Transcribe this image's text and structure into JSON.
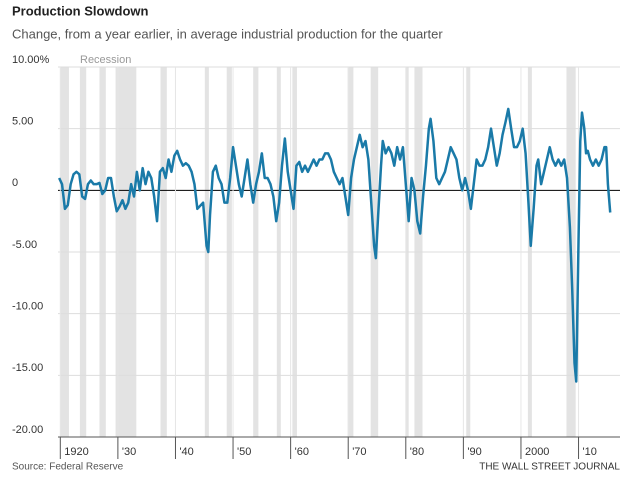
{
  "chart_data": {
    "type": "line",
    "title": "Production Slowdown",
    "subtitle": "Change, from a year earlier, in average industrial production for the quarter",
    "source": "Source: Federal Reserve",
    "credit": "THE WALL STREET JOURNAL",
    "recession_label": "Recession",
    "recession_color": "#e3e3e3",
    "grid": true,
    "xlim": [
      1919.6,
      2017.2
    ],
    "ylim": [
      -20,
      10
    ],
    "yticks": [
      {
        "value": -20,
        "label": "-20.00"
      },
      {
        "value": -15,
        "label": "-15.00"
      },
      {
        "value": -10,
        "label": "-10.00"
      },
      {
        "value": -5,
        "label": "-5.00"
      },
      0,
      {
        "value": 5,
        "label": "5.00"
      },
      {
        "value": 10,
        "label": "10.00%"
      }
    ],
    "xticks": [
      1920,
      {
        "value": 1930,
        "label": "'30"
      },
      {
        "value": 1940,
        "label": "'40"
      },
      {
        "value": 1950,
        "label": "'50"
      },
      {
        "value": 1960,
        "label": "'60"
      },
      {
        "value": 1970,
        "label": "'70"
      },
      {
        "value": 1980,
        "label": "'80"
      },
      {
        "value": 1990,
        "label": "'90"
      },
      2000,
      {
        "value": 2010,
        "label": "'10"
      }
    ],
    "recessions": [
      [
        1920.0,
        1921.5
      ],
      [
        1923.4,
        1924.5
      ],
      [
        1926.8,
        1927.9
      ],
      [
        1929.6,
        1933.2
      ],
      [
        1937.4,
        1938.5
      ],
      [
        1945.1,
        1945.8
      ],
      [
        1948.9,
        1949.8
      ],
      [
        1953.5,
        1954.4
      ],
      [
        1957.6,
        1958.3
      ],
      [
        1960.3,
        1961.1
      ],
      [
        1969.9,
        1970.9
      ],
      [
        1973.9,
        1975.2
      ],
      [
        1980.0,
        1980.5
      ],
      [
        1981.5,
        1982.9
      ],
      [
        1990.5,
        1991.2
      ],
      [
        2001.2,
        2001.9
      ],
      [
        2007.9,
        2009.5
      ]
    ],
    "x": [
      1919.8,
      1920.3,
      1920.8,
      1921.3,
      1921.8,
      1922.3,
      1922.8,
      1923.3,
      1923.8,
      1924.3,
      1924.8,
      1925.3,
      1925.8,
      1926.3,
      1926.8,
      1927.3,
      1927.8,
      1928.3,
      1928.8,
      1929.3,
      1929.8,
      1930.3,
      1930.8,
      1931.3,
      1931.8,
      1932.3,
      1932.8,
      1933.3,
      1933.8,
      1934.3,
      1934.8,
      1935.3,
      1935.8,
      1936.3,
      1936.8,
      1937.3,
      1937.8,
      1938.3,
      1938.8,
      1939.3,
      1939.8,
      1940.3,
      1940.8,
      1941.3,
      1941.8,
      1942.3,
      1942.8,
      1943.3,
      1943.8,
      1944.8,
      1945.4,
      1945.7,
      1946.0,
      1946.5,
      1947.0,
      1947.5,
      1948.0,
      1948.5,
      1949.0,
      1949.5,
      1950.0,
      1950.5,
      1951.0,
      1951.5,
      1952.0,
      1952.5,
      1953.0,
      1953.5,
      1954.0,
      1954.5,
      1955.0,
      1955.5,
      1956.0,
      1956.5,
      1957.0,
      1957.5,
      1958.0,
      1958.5,
      1959.0,
      1959.5,
      1960.0,
      1960.5,
      1961.0,
      1961.5,
      1962.0,
      1962.5,
      1963.0,
      1963.5,
      1964.0,
      1964.5,
      1965.0,
      1965.5,
      1966.0,
      1966.5,
      1967.0,
      1967.5,
      1968.0,
      1968.5,
      1969.0,
      1969.5,
      1970.0,
      1970.5,
      1971.0,
      1971.5,
      1972.0,
      1972.5,
      1973.0,
      1973.5,
      1974.0,
      1974.5,
      1974.8,
      1975.2,
      1975.7,
      1976.0,
      1976.5,
      1977.0,
      1977.5,
      1978.0,
      1978.5,
      1979.0,
      1979.5,
      1980.0,
      1980.5,
      1981.0,
      1981.5,
      1982.0,
      1982.5,
      1983.0,
      1983.5,
      1984.0,
      1984.3,
      1984.8,
      1985.3,
      1985.8,
      1986.3,
      1986.8,
      1987.3,
      1987.8,
      1988.3,
      1988.8,
      1989.3,
      1989.8,
      1990.3,
      1990.8,
      1991.3,
      1991.8,
      1992.3,
      1992.8,
      1993.3,
      1993.8,
      1994.3,
      1994.8,
      1995.3,
      1995.8,
      1996.3,
      1996.8,
      1997.3,
      1997.8,
      1998.3,
      1998.8,
      1999.3,
      1999.8,
      2000.3,
      2000.8,
      2001.3,
      2001.7,
      2002.2,
      2002.7,
      2003.0,
      2003.5,
      2004.0,
      2004.5,
      2005.0,
      2005.5,
      2006.0,
      2006.5,
      2007.0,
      2007.5,
      2008.0,
      2008.5,
      2008.9,
      2009.3,
      2009.6,
      2010.0,
      2010.3,
      2010.6,
      2011.0,
      2011.3,
      2011.6,
      2012.0,
      2012.5,
      2013.0,
      2013.5,
      2014.0,
      2014.5,
      2014.8,
      2015.1,
      2015.5
    ],
    "series": [
      {
        "name": "Industrial production change",
        "color": "#1a7aa8",
        "values": [
          1.0,
          0.5,
          -1.5,
          -1.2,
          0.5,
          1.3,
          1.5,
          1.3,
          -0.5,
          -0.7,
          0.5,
          0.8,
          0.5,
          0.5,
          0.6,
          -0.3,
          0.0,
          1.0,
          1.0,
          -0.5,
          -1.7,
          -1.3,
          -0.8,
          -1.5,
          -1.0,
          0.5,
          -0.5,
          1.5,
          0.0,
          1.8,
          0.5,
          1.5,
          1.0,
          -0.5,
          -2.5,
          1.5,
          1.8,
          1.0,
          2.5,
          1.5,
          2.8,
          3.2,
          2.5,
          2.0,
          2.2,
          2.0,
          1.5,
          0.5,
          -1.5,
          -1.0,
          -4.5,
          -5.0,
          -2.0,
          1.5,
          2.0,
          1.0,
          0.5,
          -1.0,
          -1.0,
          1.0,
          3.5,
          2.0,
          0.5,
          -0.5,
          1.0,
          2.5,
          0.5,
          -1.0,
          0.5,
          1.5,
          3.0,
          1.0,
          1.0,
          0.5,
          -0.5,
          -2.5,
          -1.0,
          2.0,
          4.2,
          1.5,
          0.0,
          -1.5,
          2.0,
          2.3,
          1.5,
          2.0,
          1.5,
          2.0,
          2.5,
          2.0,
          2.5,
          2.5,
          3.0,
          3.0,
          2.5,
          1.5,
          1.0,
          0.5,
          1.0,
          -0.5,
          -2.0,
          1.0,
          2.5,
          3.5,
          4.5,
          3.5,
          4.0,
          2.5,
          -1.0,
          -4.5,
          -5.5,
          -2.0,
          2.0,
          4.0,
          3.0,
          3.5,
          3.0,
          2.0,
          3.5,
          2.5,
          3.5,
          0.5,
          -2.5,
          1.0,
          0.0,
          -2.5,
          -3.5,
          -0.5,
          2.0,
          5.0,
          5.8,
          4.0,
          1.0,
          0.5,
          1.0,
          1.5,
          2.5,
          3.5,
          3.0,
          2.5,
          1.0,
          0.0,
          1.0,
          0.0,
          -1.5,
          0.5,
          2.5,
          2.0,
          2.0,
          2.5,
          3.5,
          5.0,
          3.5,
          2.0,
          3.0,
          4.5,
          5.5,
          6.6,
          5.0,
          3.5,
          3.5,
          4.0,
          5.0,
          3.0,
          -1.0,
          -4.5,
          -1.5,
          2.0,
          2.5,
          0.5,
          1.5,
          2.5,
          3.5,
          2.5,
          2.0,
          2.5,
          2.0,
          2.5,
          1.0,
          -3.0,
          -8.0,
          -14.0,
          -15.5,
          -4.0,
          4.0,
          6.3,
          5.0,
          3.0,
          3.2,
          2.5,
          2.0,
          2.5,
          2.0,
          2.5,
          3.5,
          3.5,
          0.5,
          -1.8
        ]
      }
    ]
  }
}
